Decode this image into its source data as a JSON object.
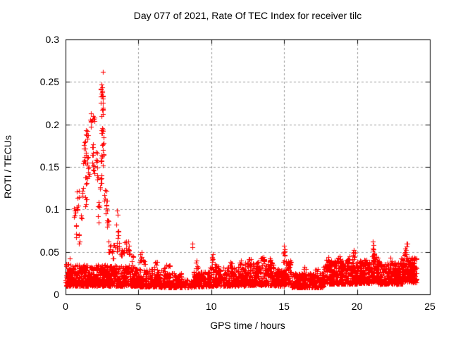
{
  "chart_data": {
    "type": "scatter",
    "title": "Day 077 of 2021, Rate Of TEC Index for receiver tilc",
    "xlabel": "GPS time / hours",
    "ylabel": "ROTI / TECUs",
    "xlim": [
      0,
      25
    ],
    "ylim": [
      0,
      0.3
    ],
    "xticks": [
      0,
      5,
      10,
      15,
      20,
      25
    ],
    "xtick_labels": [
      "0",
      "5",
      "10",
      "15",
      "20",
      "25"
    ],
    "yticks": [
      0,
      0.05,
      0.1,
      0.15,
      0.2,
      0.25,
      0.3
    ],
    "ytick_labels": [
      "0",
      "0.05",
      "0.1",
      "0.15",
      "0.2",
      "0.25",
      "0.3"
    ],
    "grid": true,
    "legend_position": "none",
    "marker": "plus",
    "marker_size_px": 7,
    "marker_color": "#ff0000",
    "grid_color": "#999999",
    "axis_color": "#000000",
    "background": "#ffffff",
    "x_data_range": [
      0,
      24.1
    ],
    "max_point": [
      2.55,
      0.263
    ],
    "scatter_spec": {
      "bands_format": "[t_start, t_end, n_points, y_low, y_high, low_bias_exponent]",
      "bands": [
        [
          0.0,
          0.6,
          110,
          0.01,
          0.036,
          1.7
        ],
        [
          0.6,
          3.0,
          380,
          0.01,
          0.035,
          1.6
        ],
        [
          3.0,
          5.0,
          300,
          0.01,
          0.034,
          1.6
        ],
        [
          5.0,
          6.5,
          200,
          0.009,
          0.03,
          1.7
        ],
        [
          6.5,
          7.95,
          165,
          0.008,
          0.025,
          1.6
        ],
        [
          7.95,
          8.8,
          55,
          0.008,
          0.018,
          1.4
        ],
        [
          8.8,
          9.9,
          150,
          0.009,
          0.027,
          1.5
        ],
        [
          9.9,
          12.3,
          340,
          0.01,
          0.033,
          1.7
        ],
        [
          12.3,
          14.3,
          300,
          0.011,
          0.038,
          1.8
        ],
        [
          14.3,
          15.1,
          110,
          0.01,
          0.03,
          1.6
        ],
        [
          15.1,
          15.5,
          60,
          0.012,
          0.04,
          1.6
        ],
        [
          15.5,
          17.7,
          310,
          0.008,
          0.025,
          1.5
        ],
        [
          17.7,
          19.1,
          240,
          0.012,
          0.04,
          1.6
        ],
        [
          19.1,
          20.0,
          130,
          0.012,
          0.042,
          1.7
        ],
        [
          20.0,
          21.0,
          160,
          0.013,
          0.038,
          1.7
        ],
        [
          21.0,
          21.4,
          75,
          0.015,
          0.045,
          1.4
        ],
        [
          21.4,
          23.1,
          280,
          0.012,
          0.038,
          1.7
        ],
        [
          23.1,
          24.1,
          170,
          0.014,
          0.043,
          1.6
        ]
      ],
      "clusters_format": "[t_center, y_center, n_points, t_jitter, y_jitter]",
      "clusters": [
        [
          2.5,
          0.234,
          12,
          0.09,
          0.01
        ],
        [
          2.52,
          0.215,
          6,
          0.06,
          0.006
        ],
        [
          2.5,
          0.196,
          6,
          0.07,
          0.007
        ],
        [
          2.55,
          0.172,
          7,
          0.08,
          0.009
        ],
        [
          2.5,
          0.157,
          6,
          0.07,
          0.006
        ],
        [
          2.45,
          0.131,
          7,
          0.08,
          0.009
        ],
        [
          2.75,
          0.12,
          6,
          0.08,
          0.01
        ],
        [
          2.85,
          0.1,
          6,
          0.08,
          0.01
        ],
        [
          2.9,
          0.075,
          6,
          0.09,
          0.012
        ],
        [
          3.0,
          0.057,
          6,
          0.09,
          0.008
        ],
        [
          1.9,
          0.208,
          4,
          0.08,
          0.005
        ],
        [
          1.72,
          0.203,
          4,
          0.05,
          0.006
        ],
        [
          1.85,
          0.171,
          6,
          0.1,
          0.008
        ],
        [
          1.95,
          0.15,
          6,
          0.1,
          0.008
        ],
        [
          2.1,
          0.16,
          5,
          0.07,
          0.008
        ],
        [
          2.2,
          0.143,
          5,
          0.07,
          0.008
        ],
        [
          1.45,
          0.186,
          7,
          0.1,
          0.008
        ],
        [
          1.35,
          0.172,
          6,
          0.08,
          0.007
        ],
        [
          1.3,
          0.16,
          7,
          0.1,
          0.007
        ],
        [
          1.5,
          0.158,
          5,
          0.07,
          0.006
        ],
        [
          1.55,
          0.143,
          6,
          0.09,
          0.007
        ],
        [
          1.4,
          0.135,
          4,
          0.07,
          0.006
        ],
        [
          1.42,
          0.108,
          5,
          0.08,
          0.007
        ],
        [
          1.2,
          0.122,
          4,
          0.06,
          0.007
        ],
        [
          0.85,
          0.12,
          5,
          0.07,
          0.008
        ],
        [
          0.8,
          0.105,
          4,
          0.06,
          0.006
        ],
        [
          0.62,
          0.096,
          5,
          0.05,
          0.006
        ],
        [
          0.7,
          0.075,
          4,
          0.06,
          0.008
        ],
        [
          0.9,
          0.065,
          4,
          0.07,
          0.006
        ],
        [
          1.1,
          0.088,
          3,
          0.05,
          0.005
        ],
        [
          3.6,
          0.07,
          5,
          0.07,
          0.005
        ],
        [
          3.6,
          0.055,
          7,
          0.09,
          0.006
        ],
        [
          3.9,
          0.05,
          9,
          0.12,
          0.007
        ],
        [
          4.1,
          0.057,
          6,
          0.08,
          0.005
        ],
        [
          4.3,
          0.052,
          7,
          0.09,
          0.006
        ],
        [
          4.6,
          0.042,
          5,
          0.09,
          0.005
        ],
        [
          5.15,
          0.043,
          7,
          0.12,
          0.005
        ],
        [
          5.4,
          0.038,
          5,
          0.1,
          0.004
        ],
        [
          6.2,
          0.035,
          5,
          0.12,
          0.003
        ],
        [
          2.3,
          0.108,
          4,
          0.06,
          0.008
        ],
        [
          2.25,
          0.09,
          3,
          0.05,
          0.006
        ],
        [
          3.2,
          0.047,
          5,
          0.08,
          0.006
        ],
        [
          3.35,
          0.06,
          3,
          0.04,
          0.005
        ],
        [
          6.7,
          0.029,
          6,
          0.15,
          0.003
        ],
        [
          7.1,
          0.032,
          4,
          0.08,
          0.003
        ],
        [
          9.05,
          0.033,
          4,
          0.05,
          0.004
        ],
        [
          10.05,
          0.04,
          6,
          0.08,
          0.004
        ],
        [
          10.3,
          0.035,
          4,
          0.08,
          0.003
        ],
        [
          11.3,
          0.034,
          5,
          0.1,
          0.003
        ],
        [
          12.0,
          0.036,
          5,
          0.1,
          0.003
        ],
        [
          12.65,
          0.038,
          6,
          0.12,
          0.004
        ],
        [
          13.5,
          0.039,
          7,
          0.15,
          0.004
        ],
        [
          14.0,
          0.038,
          4,
          0.08,
          0.003
        ],
        [
          15.0,
          0.044,
          7,
          0.05,
          0.007
        ],
        [
          15.25,
          0.035,
          4,
          0.06,
          0.004
        ],
        [
          16.4,
          0.028,
          4,
          0.1,
          0.003
        ],
        [
          17.2,
          0.027,
          4,
          0.1,
          0.003
        ],
        [
          18.0,
          0.038,
          7,
          0.12,
          0.004
        ],
        [
          18.45,
          0.036,
          6,
          0.12,
          0.004
        ],
        [
          18.8,
          0.04,
          7,
          0.12,
          0.004
        ],
        [
          19.4,
          0.042,
          5,
          0.08,
          0.004
        ],
        [
          19.8,
          0.046,
          6,
          0.08,
          0.004
        ],
        [
          20.3,
          0.036,
          5,
          0.1,
          0.004
        ],
        [
          20.6,
          0.038,
          4,
          0.08,
          0.003
        ],
        [
          21.15,
          0.047,
          9,
          0.09,
          0.006
        ],
        [
          21.6,
          0.036,
          4,
          0.08,
          0.004
        ],
        [
          22.3,
          0.038,
          5,
          0.1,
          0.004
        ],
        [
          23.35,
          0.049,
          7,
          0.09,
          0.005
        ],
        [
          23.7,
          0.038,
          6,
          0.12,
          0.004
        ]
      ],
      "outliers_format": "[t, y]",
      "outliers": [
        [
          2.55,
          0.262
        ],
        [
          2.47,
          0.247
        ],
        [
          2.52,
          0.244
        ],
        [
          1.75,
          0.213
        ],
        [
          1.95,
          0.206
        ],
        [
          2.6,
          0.185
        ],
        [
          2.62,
          0.178
        ],
        [
          8.7,
          0.06
        ],
        [
          8.72,
          0.0555
        ],
        [
          15.0,
          0.057
        ],
        [
          15.02,
          0.053
        ],
        [
          15.0,
          0.05
        ],
        [
          21.1,
          0.062
        ],
        [
          21.13,
          0.058
        ],
        [
          21.08,
          0.054
        ],
        [
          23.4,
          0.0595
        ],
        [
          23.45,
          0.0595
        ],
        [
          23.42,
          0.056
        ],
        [
          23.38,
          0.052
        ],
        [
          19.8,
          0.052
        ],
        [
          19.75,
          0.049
        ],
        [
          19.5,
          0.045
        ],
        [
          10.1,
          0.047
        ],
        [
          10.05,
          0.044
        ],
        [
          13.6,
          0.044
        ],
        [
          13.65,
          0.041
        ],
        [
          8.95,
          0.037
        ],
        [
          8.97,
          0.031
        ],
        [
          8.93,
          0.026
        ],
        [
          0.3,
          0.042
        ],
        [
          4.3,
          0.062
        ],
        [
          5.2,
          0.05
        ],
        [
          3.55,
          0.099
        ],
        [
          3.58,
          0.094
        ],
        [
          3.5,
          0.082
        ],
        [
          12.05,
          0.04
        ],
        [
          11.3,
          0.038
        ],
        [
          16.4,
          0.032
        ],
        [
          6.9,
          0.035
        ],
        [
          18.05,
          0.044
        ],
        [
          18.8,
          0.045
        ],
        [
          22.3,
          0.043
        ],
        [
          23.0,
          0.042
        ],
        [
          20.5,
          0.041
        ],
        [
          17.3,
          0.03
        ],
        [
          14.0,
          0.042
        ],
        [
          12.6,
          0.041
        ],
        [
          9.0,
          0.04
        ]
      ]
    }
  }
}
